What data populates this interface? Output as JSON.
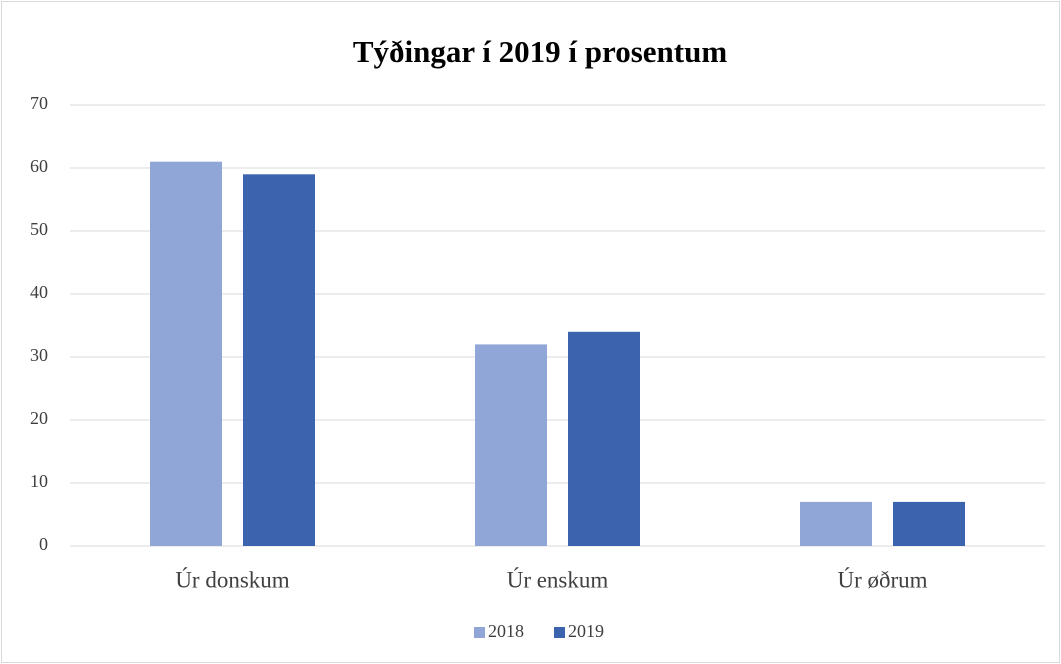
{
  "chart_data": {
    "type": "bar",
    "title": "Týðingar í 2019 í prosentum",
    "categories": [
      "Úr donskum",
      "Úr enskum",
      "Úr øðrum"
    ],
    "series": [
      {
        "name": "2018",
        "color": "#8fa6d7",
        "values": [
          61,
          32,
          7
        ]
      },
      {
        "name": "2019",
        "color": "#3c64ae",
        "values": [
          59,
          34,
          7
        ]
      }
    ],
    "ylim": [
      0,
      70
    ],
    "yticks": [
      0,
      10,
      20,
      30,
      40,
      50,
      60,
      70
    ],
    "grid": true,
    "legend": "bottom"
  }
}
